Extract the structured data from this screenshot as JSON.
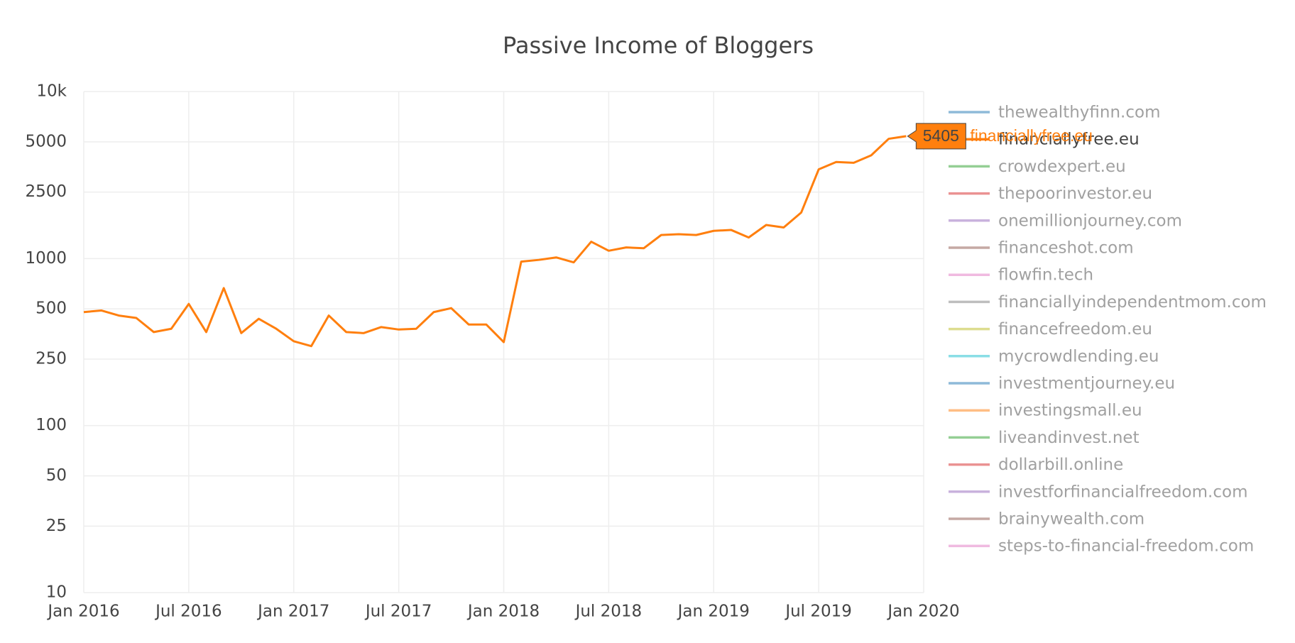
{
  "chart_data": {
    "type": "line",
    "title": "Passive Income of Bloggers",
    "log_y": true,
    "grid": true,
    "legend": "right",
    "x": [
      "2016-01",
      "2016-02",
      "2016-03",
      "2016-04",
      "2016-05",
      "2016-06",
      "2016-07",
      "2016-08",
      "2016-09",
      "2016-10",
      "2016-11",
      "2016-12",
      "2017-01",
      "2017-02",
      "2017-03",
      "2017-04",
      "2017-05",
      "2017-06",
      "2017-07",
      "2017-08",
      "2017-09",
      "2017-10",
      "2017-11",
      "2017-12",
      "2018-01",
      "2018-02",
      "2018-03",
      "2018-04",
      "2018-05",
      "2018-06",
      "2018-07",
      "2018-08",
      "2018-09",
      "2018-10",
      "2018-11",
      "2018-12",
      "2019-01",
      "2019-02",
      "2019-03",
      "2019-04",
      "2019-05",
      "2019-06",
      "2019-07",
      "2019-08",
      "2019-09",
      "2019-10",
      "2019-11",
      "2019-12"
    ],
    "xlim": [
      "2016-01",
      "2020-01"
    ],
    "xticks": [
      {
        "value": "2016-01",
        "label": "Jan 2016"
      },
      {
        "value": "2016-07",
        "label": "Jul 2016"
      },
      {
        "value": "2017-01",
        "label": "Jan 2017"
      },
      {
        "value": "2017-07",
        "label": "Jul 2017"
      },
      {
        "value": "2018-01",
        "label": "Jan 2018"
      },
      {
        "value": "2018-07",
        "label": "Jul 2018"
      },
      {
        "value": "2019-01",
        "label": "Jan 2019"
      },
      {
        "value": "2019-07",
        "label": "Jul 2019"
      },
      {
        "value": "2020-01",
        "label": "Jan 2020"
      }
    ],
    "ylim": [
      10,
      10000
    ],
    "yticks": [
      10,
      25,
      50,
      100,
      250,
      500,
      1000,
      2500,
      5000,
      {
        "value": 10000,
        "label": "10k"
      }
    ],
    "series": [
      {
        "name": "thewealthyfinn.com",
        "color": "#1f77b4",
        "visible": false
      },
      {
        "name": "financiallyfree.eu",
        "color": "#ff7f0e",
        "visible": true,
        "values": [
          478,
          489,
          456,
          441,
          363,
          380,
          535,
          363,
          666,
          358,
          436,
          380,
          320,
          299,
          456,
          363,
          358,
          389,
          376,
          380,
          478,
          505,
          403,
          403,
          316,
          959,
          982,
          1016,
          949,
          1262,
          1114,
          1166,
          1153,
          1384,
          1400,
          1384,
          1466,
          1483,
          1337,
          1589,
          1535,
          1885,
          3420,
          3786,
          3744,
          4150,
          5214,
          5405
        ]
      },
      {
        "name": "crowdexpert.eu",
        "color": "#2ca02c",
        "visible": false
      },
      {
        "name": "thepoorinvestor.eu",
        "color": "#d62728",
        "visible": false
      },
      {
        "name": "onemillionjourney.com",
        "color": "#9467bd",
        "visible": false
      },
      {
        "name": "financeshot.com",
        "color": "#8c564b",
        "visible": false
      },
      {
        "name": "flowfin.tech",
        "color": "#e377c2",
        "visible": false
      },
      {
        "name": "financiallyindependentmom.com",
        "color": "#7f7f7f",
        "visible": false
      },
      {
        "name": "financefreedom.eu",
        "color": "#bcbd22",
        "visible": false
      },
      {
        "name": "mycrowdlending.eu",
        "color": "#17becf",
        "visible": false
      },
      {
        "name": "investmentjourney.eu",
        "color": "#1f77b4",
        "visible": false
      },
      {
        "name": "investingsmall.eu",
        "color": "#ff7f0e",
        "visible": false
      },
      {
        "name": "liveandinvest.net",
        "color": "#2ca02c",
        "visible": false
      },
      {
        "name": "dollarbill.online",
        "color": "#d62728",
        "visible": false
      },
      {
        "name": "investforfinancialfreedom.com",
        "color": "#9467bd",
        "visible": false
      },
      {
        "name": "brainywealth.com",
        "color": "#8c564b",
        "visible": false
      },
      {
        "name": "steps-to-financial-freedom.com",
        "color": "#e377c2",
        "visible": false
      }
    ]
  }
}
